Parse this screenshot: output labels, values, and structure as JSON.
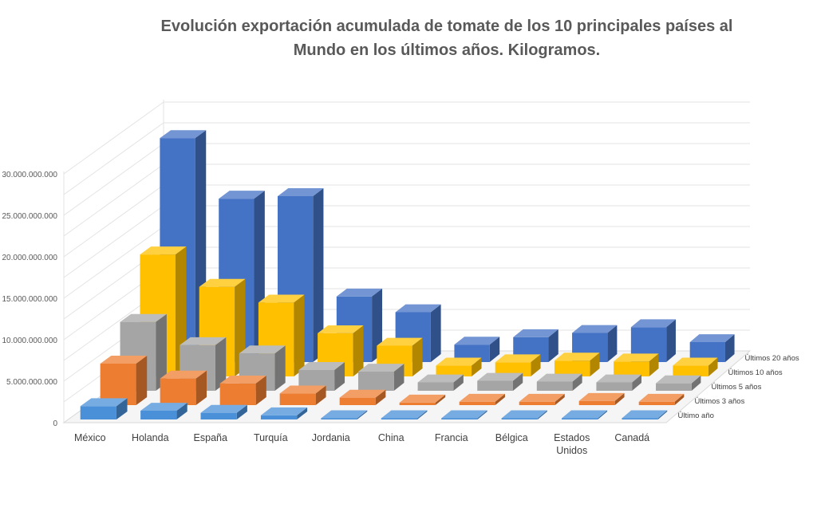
{
  "chart_data": {
    "type": "bar",
    "subtype": "3d-column",
    "title": "Evolución exportación acumulada de tomate de los 10 principales países al Mundo en los últimos años. Kilogramos.",
    "categories": [
      "México",
      "Holanda",
      "España",
      "Turquía",
      "Jordania",
      "China",
      "Francia",
      "Bélgica",
      "Estados Unidos",
      "Canadá"
    ],
    "series": [
      {
        "name": "Último año",
        "color": "#4a90d9",
        "values": [
          1600000000,
          1050000000,
          800000000,
          500000000,
          100000000,
          100000000,
          100000000,
          100000000,
          100000000,
          100000000
        ]
      },
      {
        "name": "Últimos 3 años",
        "color": "#ed7d31",
        "values": [
          5000000000,
          3200000000,
          2600000000,
          1400000000,
          900000000,
          300000000,
          400000000,
          400000000,
          500000000,
          400000000
        ]
      },
      {
        "name": "Últimos 5 años",
        "color": "#a5a5a5",
        "values": [
          8300000000,
          5500000000,
          4500000000,
          2500000000,
          2300000000,
          1000000000,
          1200000000,
          1100000000,
          1000000000,
          900000000
        ]
      },
      {
        "name": "Últimos 10 años",
        "color": "#ffc000",
        "values": [
          14700000000,
          10800000000,
          8900000000,
          5200000000,
          3700000000,
          1300000000,
          1700000000,
          1900000000,
          1800000000,
          1300000000
        ]
      },
      {
        "name": "Últimos 20 años",
        "color": "#4472c4",
        "values": [
          27000000000,
          19700000000,
          20000000000,
          7900000000,
          6000000000,
          2100000000,
          3000000000,
          3500000000,
          4200000000,
          2400000000
        ]
      }
    ],
    "y_ticks": [
      "0",
      "5.000.000.000",
      "10.000.000.000",
      "15.000.000.000",
      "20.000.000.000",
      "25.000.000.000",
      "30.000.000.000"
    ],
    "ylim": [
      0,
      30000000000
    ],
    "grid": true,
    "legend": "none"
  }
}
